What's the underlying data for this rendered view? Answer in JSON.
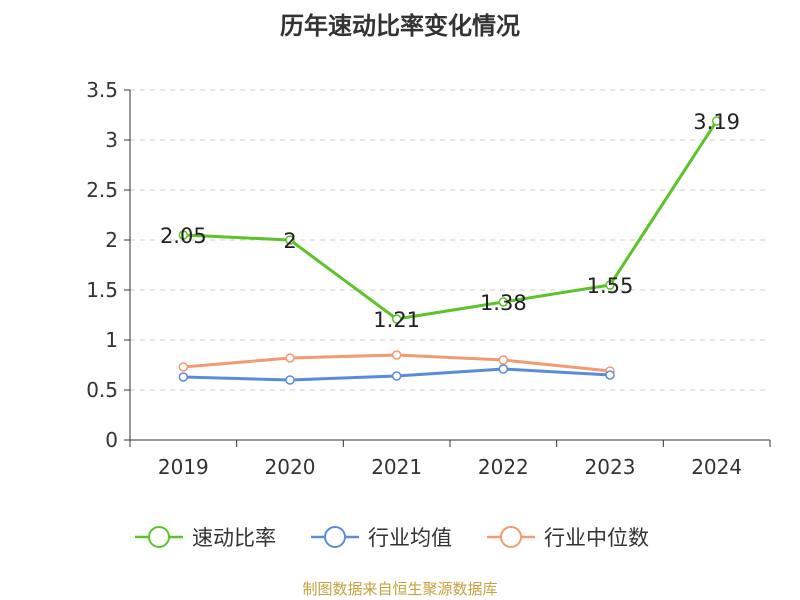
{
  "title": "历年速动比率变化情况",
  "source": "制图数据来自恒生聚源数据库",
  "chart_data": {
    "type": "line",
    "title": "历年速动比率变化情况",
    "categories": [
      "2019",
      "2020",
      "2021",
      "2022",
      "2023",
      "2024"
    ],
    "ylim": [
      0,
      3.5
    ],
    "yticks": [
      "0",
      "0.5",
      "1",
      "1.5",
      "2",
      "2.5",
      "3",
      "3.5"
    ],
    "grid": true,
    "legend_position": "bottom",
    "series": [
      {
        "name": "速动比率",
        "color": "#5ec22a",
        "values": [
          2.05,
          2.0,
          1.21,
          1.38,
          1.55,
          3.19
        ],
        "labels": [
          "2.05",
          "2",
          "1.21",
          "1.38",
          "1.55",
          "3.19"
        ],
        "show_labels": true
      },
      {
        "name": "行业均值",
        "color": "#5b8bdd",
        "values": [
          0.63,
          0.6,
          0.64,
          0.71,
          0.65,
          null
        ],
        "show_labels": false
      },
      {
        "name": "行业中位数",
        "color": "#f39a72",
        "values": [
          0.73,
          0.82,
          0.85,
          0.8,
          0.69,
          null
        ],
        "show_labels": false
      }
    ]
  }
}
